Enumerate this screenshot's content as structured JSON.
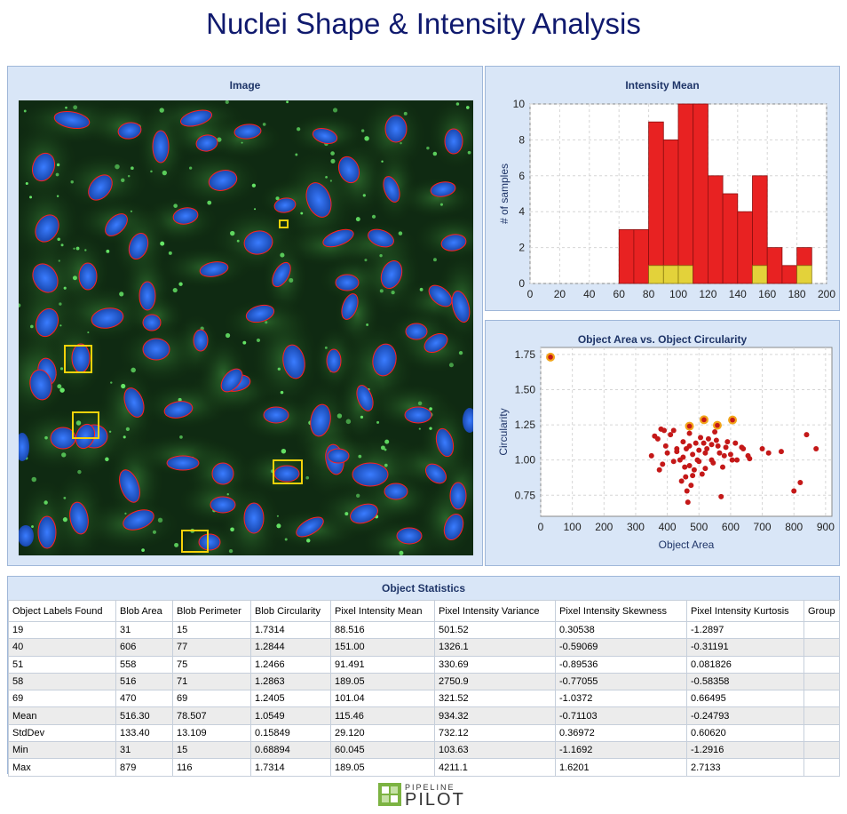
{
  "page_title": "Nuclei Shape & Intensity Analysis",
  "image_panel": {
    "title": "Image"
  },
  "histogram_panel": {
    "title": "Intensity Mean"
  },
  "scatter_panel": {
    "title": "Object Area vs. Object Circularity"
  },
  "colors": {
    "title": "#101a6e",
    "panel_bg": "#d9e6f7",
    "bar_red": "#e82222",
    "bar_yellow": "#e3d23a",
    "point": "#c41818",
    "highlight": "#f2a51a",
    "nucleus_outline": "#ff2020",
    "selection_box": "#f5d20a"
  },
  "chart_data": [
    {
      "type": "bar",
      "title": "Intensity Mean",
      "xlabel": "",
      "ylabel": "# of samples",
      "xlim": [
        0,
        200
      ],
      "ylim": [
        0,
        10
      ],
      "xticks": [
        0,
        20,
        40,
        60,
        80,
        100,
        120,
        140,
        160,
        180,
        200
      ],
      "yticks": [
        0,
        2,
        4,
        6,
        8,
        10
      ],
      "bin_width": 10,
      "bin_starts": [
        60,
        70,
        80,
        90,
        100,
        110,
        120,
        130,
        140,
        150,
        160,
        170,
        180
      ],
      "series": [
        {
          "values": [
            3,
            3,
            8,
            7,
            9,
            10,
            6,
            5,
            4,
            5,
            2,
            1,
            1
          ]
        },
        {
          "values": [
            0,
            0,
            1,
            1,
            1,
            0,
            0,
            0,
            0,
            1,
            0,
            0,
            1
          ]
        }
      ],
      "grid": true
    },
    {
      "type": "scatter",
      "title": "Object Area vs. Object Circularity",
      "xlabel": "Object Area",
      "ylabel": "Circularity",
      "xlim": [
        0,
        920
      ],
      "ylim": [
        0.6,
        1.8
      ],
      "xticks": [
        0,
        100,
        200,
        300,
        400,
        500,
        600,
        700,
        800,
        900
      ],
      "yticks": [
        0.75,
        1.0,
        1.25,
        1.5,
        1.75
      ],
      "grid": true,
      "points": [
        [
          360,
          1.17
        ],
        [
          370,
          1.15
        ],
        [
          380,
          1.22
        ],
        [
          390,
          1.21
        ],
        [
          395,
          1.1
        ],
        [
          400,
          1.05
        ],
        [
          410,
          1.18
        ],
        [
          420,
          1.21
        ],
        [
          430,
          1.06
        ],
        [
          440,
          1.0
        ],
        [
          450,
          1.13
        ],
        [
          455,
          0.95
        ],
        [
          460,
          1.08
        ],
        [
          465,
          0.7
        ],
        [
          470,
          1.19
        ],
        [
          475,
          0.82
        ],
        [
          480,
          1.04
        ],
        [
          490,
          1.12
        ],
        [
          500,
          0.99
        ],
        [
          505,
          1.16
        ],
        [
          510,
          0.9
        ],
        [
          520,
          1.05
        ],
        [
          530,
          1.15
        ],
        [
          540,
          1.0
        ],
        [
          550,
          1.2
        ],
        [
          560,
          1.1
        ],
        [
          570,
          0.74
        ],
        [
          575,
          0.95
        ],
        [
          580,
          1.03
        ],
        [
          590,
          1.13
        ],
        [
          600,
          1.04
        ],
        [
          620,
          1.0
        ],
        [
          640,
          1.08
        ],
        [
          660,
          1.01
        ],
        [
          700,
          1.08
        ],
        [
          720,
          1.05
        ],
        [
          760,
          1.06
        ],
        [
          800,
          0.78
        ],
        [
          820,
          0.84
        ],
        [
          840,
          1.18
        ],
        [
          870,
          1.08
        ],
        [
          350,
          1.03
        ],
        [
          375,
          0.93
        ],
        [
          385,
          0.97
        ],
        [
          420,
          0.99
        ],
        [
          430,
          1.08
        ],
        [
          445,
          0.85
        ],
        [
          458,
          0.88
        ],
        [
          462,
          0.78
        ],
        [
          470,
          1.1
        ],
        [
          485,
          0.93
        ],
        [
          495,
          1.0
        ],
        [
          515,
          1.12
        ],
        [
          525,
          1.08
        ],
        [
          545,
          0.98
        ],
        [
          555,
          1.14
        ],
        [
          565,
          1.05
        ],
        [
          585,
          1.09
        ],
        [
          605,
          1.0
        ],
        [
          615,
          1.12
        ],
        [
          635,
          1.09
        ],
        [
          655,
          1.03
        ],
        [
          450,
          1.02
        ],
        [
          470,
          0.96
        ],
        [
          480,
          0.89
        ],
        [
          500,
          1.07
        ],
        [
          520,
          0.94
        ],
        [
          540,
          1.11
        ]
      ],
      "highlighted": [
        [
          31,
          1.7314
        ],
        [
          606,
          1.2844
        ],
        [
          558,
          1.2466
        ],
        [
          516,
          1.2863
        ],
        [
          470,
          1.2405
        ]
      ]
    }
  ],
  "table": {
    "title": "Object Statistics",
    "columns": [
      "Object Labels Found",
      "Blob Area",
      "Blob Perimeter",
      "Blob Circularity",
      "Pixel Intensity Mean",
      "Pixel Intensity Variance",
      "Pixel Intensity Skewness",
      "Pixel Intensity Kurtosis",
      "Group"
    ],
    "rows": [
      [
        "19",
        "31",
        "15",
        "1.7314",
        "88.516",
        "501.52",
        "0.30538",
        "-1.2897",
        ""
      ],
      [
        "40",
        "606",
        "77",
        "1.2844",
        "151.00",
        "1326.1",
        "-0.59069",
        "-0.31191",
        ""
      ],
      [
        "51",
        "558",
        "75",
        "1.2466",
        "91.491",
        "330.69",
        "-0.89536",
        "0.081826",
        ""
      ],
      [
        "58",
        "516",
        "71",
        "1.2863",
        "189.05",
        "2750.9",
        "-0.77055",
        "-0.58358",
        ""
      ],
      [
        "69",
        "470",
        "69",
        "1.2405",
        "101.04",
        "321.52",
        "-1.0372",
        "0.66495",
        ""
      ],
      [
        "Mean",
        "516.30",
        "78.507",
        "1.0549",
        "115.46",
        "934.32",
        "-0.71103",
        "-0.24793",
        ""
      ],
      [
        "StdDev",
        "133.40",
        "13.109",
        "0.15849",
        "29.120",
        "732.12",
        "0.36972",
        "0.60620",
        ""
      ],
      [
        "Min",
        "31",
        "15",
        "0.68894",
        "60.045",
        "103.63",
        "-1.1692",
        "-1.2916",
        ""
      ],
      [
        "Max",
        "879",
        "116",
        "1.7314",
        "189.05",
        "4211.1",
        "1.6201",
        "2.7133",
        ""
      ]
    ]
  },
  "logo": {
    "top": "PIPELINE",
    "bottom": "PILOT",
    "icon": "pipeline-pilot-logo-icon"
  }
}
